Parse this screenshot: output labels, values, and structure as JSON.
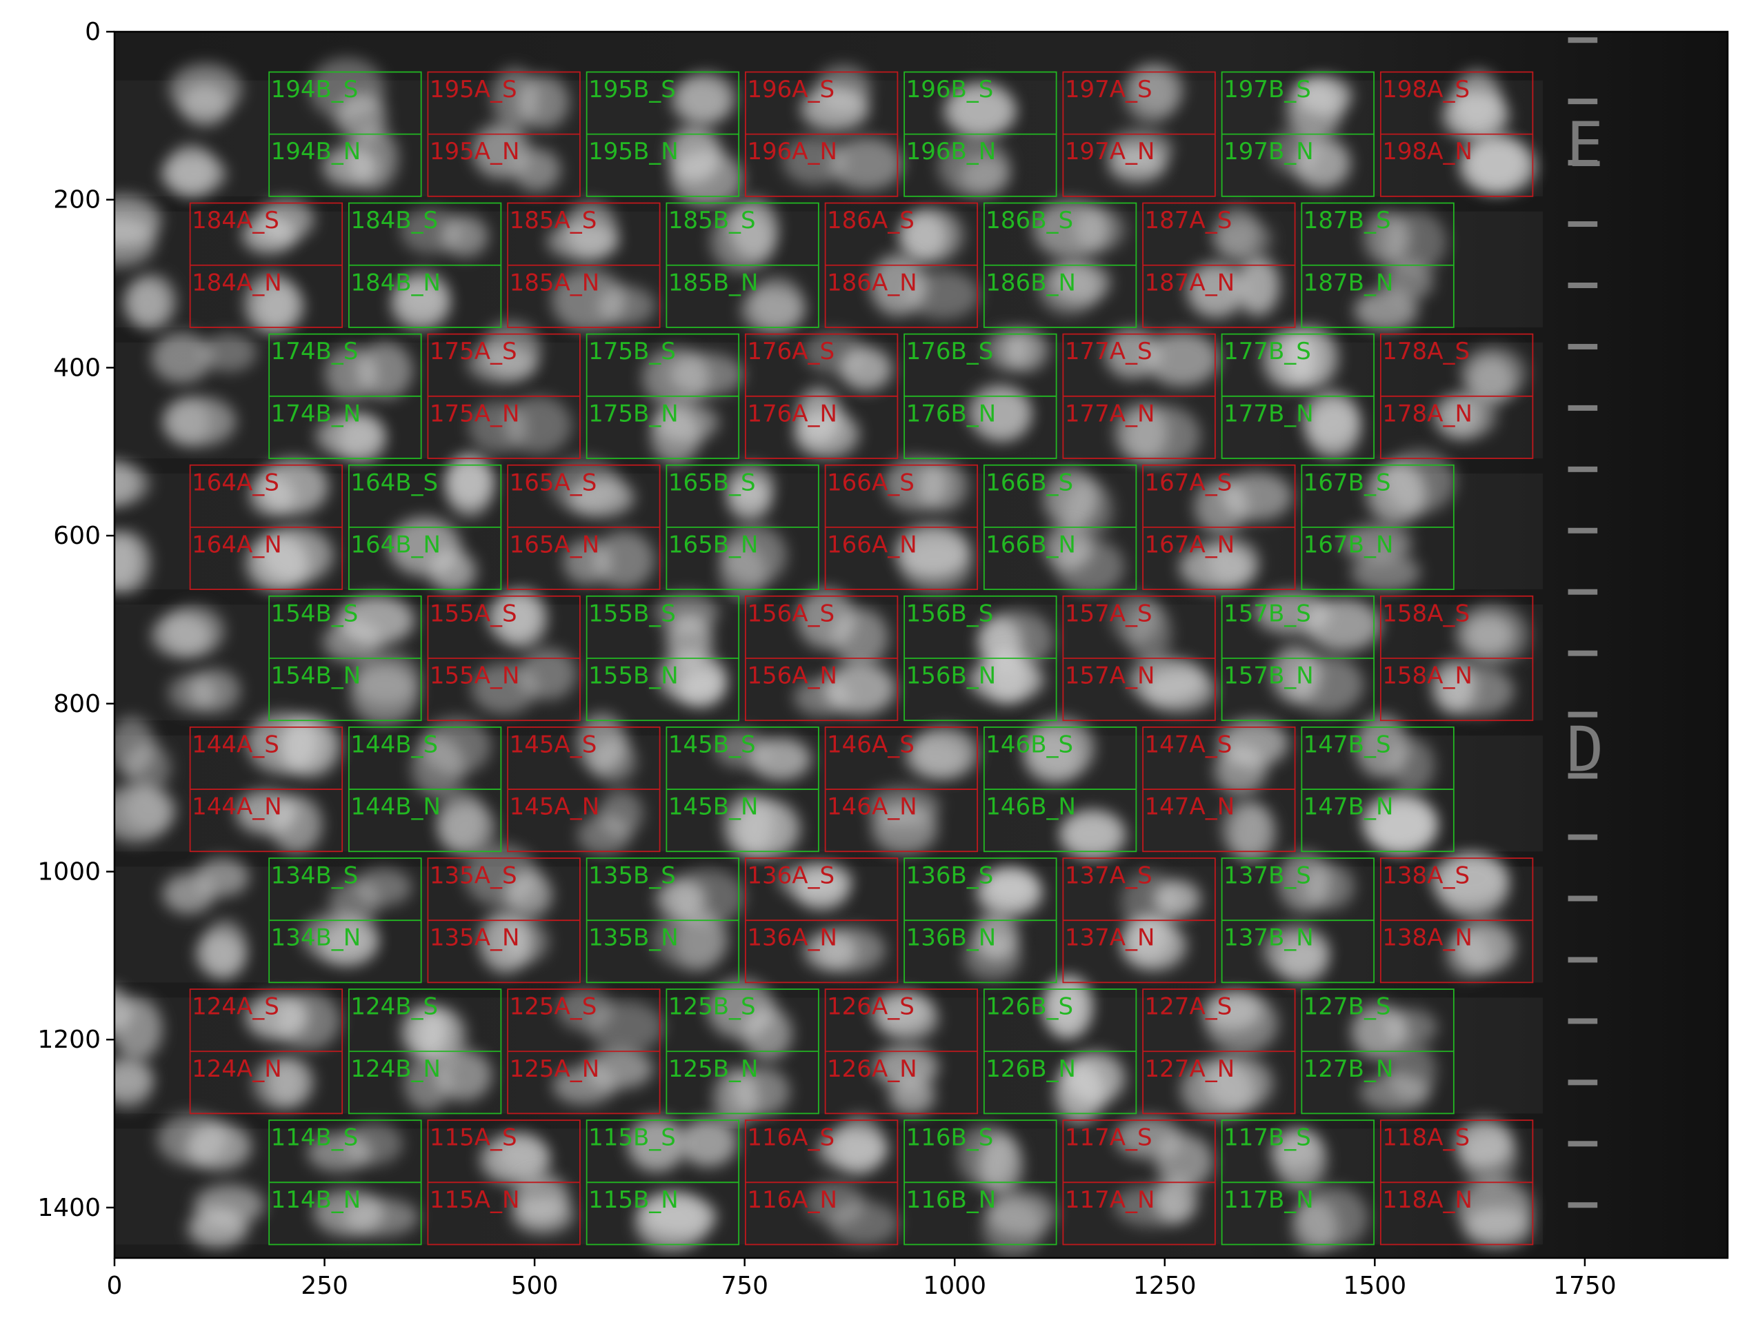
{
  "chart_data": {
    "type": "image",
    "title": "",
    "xlabel": "",
    "ylabel": "",
    "xlim": [
      0,
      1920
    ],
    "ylim": [
      1460,
      0
    ],
    "xticks": [
      0,
      250,
      500,
      750,
      1000,
      1250,
      1500,
      1750
    ],
    "yticks": [
      0,
      200,
      400,
      600,
      800,
      1000,
      1200,
      1400
    ],
    "roi": {
      "width": 181,
      "half_height": 74,
      "colors": {
        "A": "#c0181c",
        "B": "#22b822"
      }
    },
    "roi_rows": [
      {
        "y": 48,
        "start_index": 194,
        "start_part": "B",
        "x_start": 184,
        "count": 8
      },
      {
        "y": 204,
        "start_index": 184,
        "start_part": "A",
        "x_start": 90,
        "count": 8
      },
      {
        "y": 360,
        "start_index": 174,
        "start_part": "B",
        "x_start": 184,
        "count": 8
      },
      {
        "y": 516,
        "start_index": 164,
        "start_part": "A",
        "x_start": 90,
        "count": 8
      },
      {
        "y": 672,
        "start_index": 154,
        "start_part": "B",
        "x_start": 184,
        "count": 8
      },
      {
        "y": 828,
        "start_index": 144,
        "start_part": "A",
        "x_start": 90,
        "count": 8
      },
      {
        "y": 984,
        "start_index": 134,
        "start_part": "B",
        "x_start": 184,
        "count": 8
      },
      {
        "y": 1140,
        "start_index": 124,
        "start_part": "A",
        "x_start": 90,
        "count": 8
      },
      {
        "y": 1296,
        "start_index": 114,
        "start_part": "B",
        "x_start": 184,
        "count": 8
      }
    ],
    "scale_marks_y": [
      10,
      83,
      156,
      229,
      302,
      375,
      448,
      521,
      594,
      667,
      740,
      813,
      886,
      959,
      1032,
      1105,
      1178,
      1251,
      1324,
      1397
    ],
    "scale_letters": [
      {
        "text": "E",
        "y": 160
      },
      {
        "text": "D",
        "y": 880
      }
    ]
  }
}
